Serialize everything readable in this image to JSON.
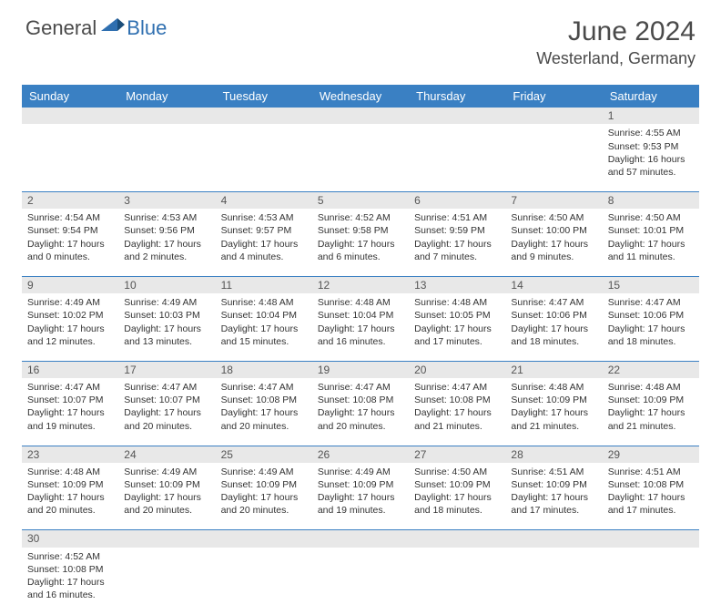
{
  "logo": {
    "text1": "General",
    "text2": "Blue"
  },
  "title": "June 2024",
  "location": "Westerland, Germany",
  "colors": {
    "header_bg": "#3a80c3",
    "header_fg": "#ffffff",
    "daynum_bg": "#e8e8e8",
    "daynum_fg": "#555555",
    "text": "#333333",
    "logo_gray": "#4a4a4a",
    "logo_blue": "#2f6fb0",
    "border": "#3a80c3",
    "page_bg": "#ffffff"
  },
  "typography": {
    "title_fontsize": 30,
    "location_fontsize": 18,
    "header_fontsize": 13,
    "cell_fontsize": 10.5,
    "daynum_fontsize": 12
  },
  "columns": [
    "Sunday",
    "Monday",
    "Tuesday",
    "Wednesday",
    "Thursday",
    "Friday",
    "Saturday"
  ],
  "weeks": [
    [
      null,
      null,
      null,
      null,
      null,
      null,
      {
        "n": "1",
        "sunrise": "4:55 AM",
        "sunset": "9:53 PM",
        "daylight": "16 hours and 57 minutes."
      }
    ],
    [
      {
        "n": "2",
        "sunrise": "4:54 AM",
        "sunset": "9:54 PM",
        "daylight": "17 hours and 0 minutes."
      },
      {
        "n": "3",
        "sunrise": "4:53 AM",
        "sunset": "9:56 PM",
        "daylight": "17 hours and 2 minutes."
      },
      {
        "n": "4",
        "sunrise": "4:53 AM",
        "sunset": "9:57 PM",
        "daylight": "17 hours and 4 minutes."
      },
      {
        "n": "5",
        "sunrise": "4:52 AM",
        "sunset": "9:58 PM",
        "daylight": "17 hours and 6 minutes."
      },
      {
        "n": "6",
        "sunrise": "4:51 AM",
        "sunset": "9:59 PM",
        "daylight": "17 hours and 7 minutes."
      },
      {
        "n": "7",
        "sunrise": "4:50 AM",
        "sunset": "10:00 PM",
        "daylight": "17 hours and 9 minutes."
      },
      {
        "n": "8",
        "sunrise": "4:50 AM",
        "sunset": "10:01 PM",
        "daylight": "17 hours and 11 minutes."
      }
    ],
    [
      {
        "n": "9",
        "sunrise": "4:49 AM",
        "sunset": "10:02 PM",
        "daylight": "17 hours and 12 minutes."
      },
      {
        "n": "10",
        "sunrise": "4:49 AM",
        "sunset": "10:03 PM",
        "daylight": "17 hours and 13 minutes."
      },
      {
        "n": "11",
        "sunrise": "4:48 AM",
        "sunset": "10:04 PM",
        "daylight": "17 hours and 15 minutes."
      },
      {
        "n": "12",
        "sunrise": "4:48 AM",
        "sunset": "10:04 PM",
        "daylight": "17 hours and 16 minutes."
      },
      {
        "n": "13",
        "sunrise": "4:48 AM",
        "sunset": "10:05 PM",
        "daylight": "17 hours and 17 minutes."
      },
      {
        "n": "14",
        "sunrise": "4:47 AM",
        "sunset": "10:06 PM",
        "daylight": "17 hours and 18 minutes."
      },
      {
        "n": "15",
        "sunrise": "4:47 AM",
        "sunset": "10:06 PM",
        "daylight": "17 hours and 18 minutes."
      }
    ],
    [
      {
        "n": "16",
        "sunrise": "4:47 AM",
        "sunset": "10:07 PM",
        "daylight": "17 hours and 19 minutes."
      },
      {
        "n": "17",
        "sunrise": "4:47 AM",
        "sunset": "10:07 PM",
        "daylight": "17 hours and 20 minutes."
      },
      {
        "n": "18",
        "sunrise": "4:47 AM",
        "sunset": "10:08 PM",
        "daylight": "17 hours and 20 minutes."
      },
      {
        "n": "19",
        "sunrise": "4:47 AM",
        "sunset": "10:08 PM",
        "daylight": "17 hours and 20 minutes."
      },
      {
        "n": "20",
        "sunrise": "4:47 AM",
        "sunset": "10:08 PM",
        "daylight": "17 hours and 21 minutes."
      },
      {
        "n": "21",
        "sunrise": "4:48 AM",
        "sunset": "10:09 PM",
        "daylight": "17 hours and 21 minutes."
      },
      {
        "n": "22",
        "sunrise": "4:48 AM",
        "sunset": "10:09 PM",
        "daylight": "17 hours and 21 minutes."
      }
    ],
    [
      {
        "n": "23",
        "sunrise": "4:48 AM",
        "sunset": "10:09 PM",
        "daylight": "17 hours and 20 minutes."
      },
      {
        "n": "24",
        "sunrise": "4:49 AM",
        "sunset": "10:09 PM",
        "daylight": "17 hours and 20 minutes."
      },
      {
        "n": "25",
        "sunrise": "4:49 AM",
        "sunset": "10:09 PM",
        "daylight": "17 hours and 20 minutes."
      },
      {
        "n": "26",
        "sunrise": "4:49 AM",
        "sunset": "10:09 PM",
        "daylight": "17 hours and 19 minutes."
      },
      {
        "n": "27",
        "sunrise": "4:50 AM",
        "sunset": "10:09 PM",
        "daylight": "17 hours and 18 minutes."
      },
      {
        "n": "28",
        "sunrise": "4:51 AM",
        "sunset": "10:09 PM",
        "daylight": "17 hours and 17 minutes."
      },
      {
        "n": "29",
        "sunrise": "4:51 AM",
        "sunset": "10:08 PM",
        "daylight": "17 hours and 17 minutes."
      }
    ],
    [
      {
        "n": "30",
        "sunrise": "4:52 AM",
        "sunset": "10:08 PM",
        "daylight": "17 hours and 16 minutes."
      },
      null,
      null,
      null,
      null,
      null,
      null
    ]
  ],
  "labels": {
    "sunrise": "Sunrise: ",
    "sunset": "Sunset: ",
    "daylight": "Daylight: "
  }
}
